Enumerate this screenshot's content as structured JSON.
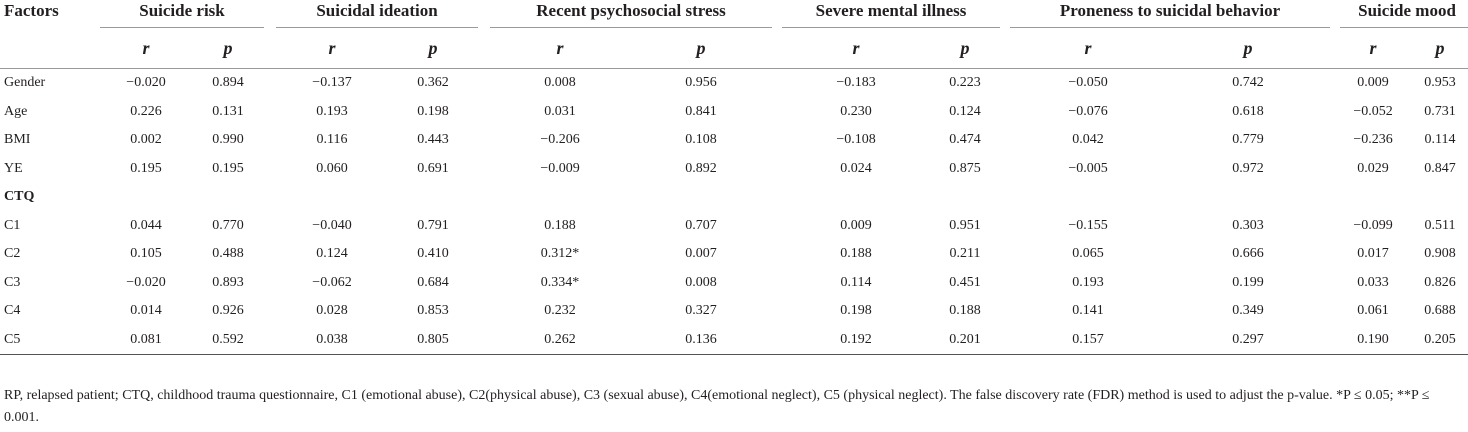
{
  "table": {
    "factors_label": "Factors",
    "groups": [
      {
        "name": "Suicide risk",
        "r": "r",
        "p": "p"
      },
      {
        "name": "Suicidal ideation",
        "r": "r",
        "p": "p"
      },
      {
        "name": "Recent psychosocial stress",
        "r": "r",
        "p": "p"
      },
      {
        "name": "Severe mental illness",
        "r": "r",
        "p": "p"
      },
      {
        "name": "Proneness to suicidal behavior",
        "r": "r",
        "p": "p"
      },
      {
        "name": "Suicide mood",
        "r": "r",
        "p": "p"
      }
    ],
    "rows": [
      {
        "label": "Gender",
        "cells": [
          "−0.020",
          "0.894",
          "−0.137",
          "0.362",
          "0.008",
          "0.956",
          "−0.183",
          "0.223",
          "−0.050",
          "0.742",
          "0.009",
          "0.953"
        ]
      },
      {
        "label": "Age",
        "cells": [
          "0.226",
          "0.131",
          "0.193",
          "0.198",
          "0.031",
          "0.841",
          "0.230",
          "0.124",
          "−0.076",
          "0.618",
          "−0.052",
          "0.731"
        ]
      },
      {
        "label": "BMI",
        "cells": [
          "0.002",
          "0.990",
          "0.116",
          "0.443",
          "−0.206",
          "0.108",
          "−0.108",
          "0.474",
          "0.042",
          "0.779",
          "−0.236",
          "0.114"
        ]
      },
      {
        "label": "YE",
        "cells": [
          "0.195",
          "0.195",
          "0.060",
          "0.691",
          "−0.009",
          "0.892",
          "0.024",
          "0.875",
          "−0.005",
          "0.972",
          "0.029",
          "0.847"
        ]
      },
      {
        "label": "CTQ",
        "section": true,
        "cells": []
      },
      {
        "label": "C1",
        "cells": [
          "0.044",
          "0.770",
          "−0.040",
          "0.791",
          "0.188",
          "0.707",
          "0.009",
          "0.951",
          "−0.155",
          "0.303",
          "−0.099",
          "0.511"
        ]
      },
      {
        "label": "C2",
        "cells": [
          "0.105",
          "0.488",
          "0.124",
          "0.410",
          "0.312*",
          "0.007",
          "0.188",
          "0.211",
          "0.065",
          "0.666",
          "0.017",
          "0.908"
        ]
      },
      {
        "label": "C3",
        "cells": [
          "−0.020",
          "0.893",
          "−0.062",
          "0.684",
          "0.334*",
          "0.008",
          "0.114",
          "0.451",
          "0.193",
          "0.199",
          "0.033",
          "0.826"
        ]
      },
      {
        "label": "C4",
        "cells": [
          "0.014",
          "0.926",
          "0.028",
          "0.853",
          "0.232",
          "0.327",
          "0.198",
          "0.188",
          "0.141",
          "0.349",
          "0.061",
          "0.688"
        ]
      },
      {
        "label": "C5",
        "cells": [
          "0.081",
          "0.592",
          "0.038",
          "0.805",
          "0.262",
          "0.136",
          "0.192",
          "0.201",
          "0.157",
          "0.297",
          "0.190",
          "0.205"
        ]
      }
    ],
    "note": "RP, relapsed patient; CTQ, childhood trauma questionnaire, C1 (emotional abuse), C2(physical abuse), C3 (sexual abuse), C4(emotional neglect), C5 (physical neglect). The false discovery rate (FDR) method is used to adjust the p-value. *P ≤ 0.05; **P ≤ 0.001."
  }
}
